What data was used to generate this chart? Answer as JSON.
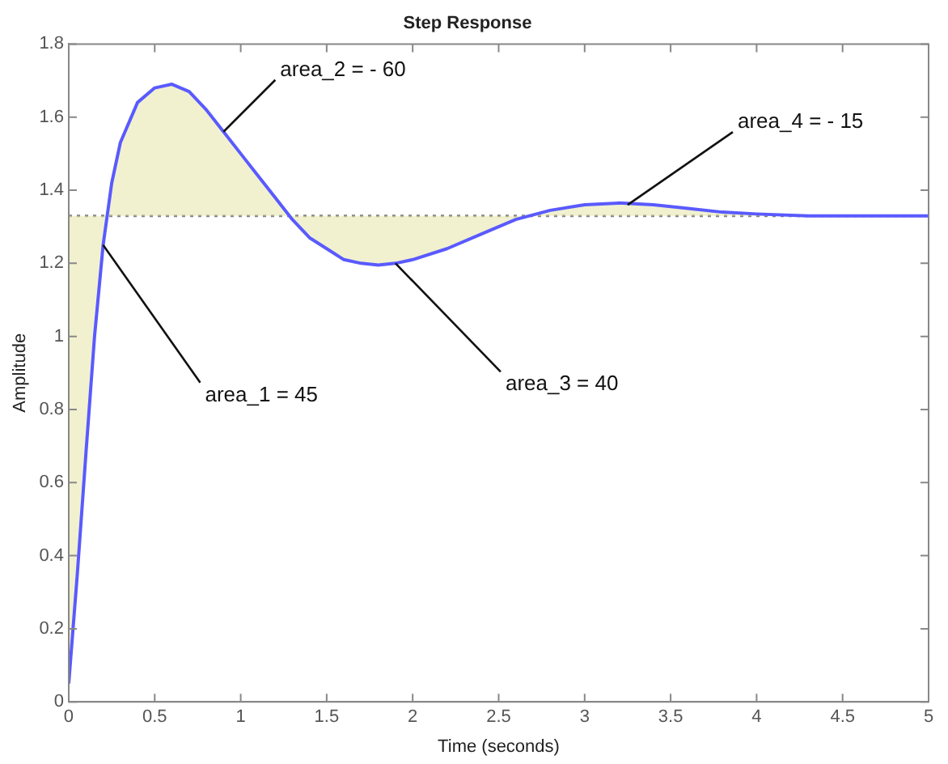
{
  "chart_data": {
    "type": "line",
    "title": "Step Response",
    "xlabel": "Time (seconds)",
    "ylabel": "Amplitude",
    "x": [
      0,
      0.05,
      0.1,
      0.15,
      0.2,
      0.25,
      0.3,
      0.4,
      0.5,
      0.6,
      0.7,
      0.8,
      0.9,
      1.0,
      1.1,
      1.2,
      1.3,
      1.4,
      1.5,
      1.6,
      1.7,
      1.8,
      1.9,
      2.0,
      2.2,
      2.4,
      2.6,
      2.8,
      3.0,
      3.2,
      3.4,
      3.6,
      3.8,
      4.0,
      4.3,
      4.6,
      5.0
    ],
    "series": [
      {
        "color": "#5a5aff",
        "values": [
          0.05,
          0.35,
          0.68,
          1.0,
          1.25,
          1.42,
          1.53,
          1.64,
          1.68,
          1.69,
          1.67,
          1.62,
          1.56,
          1.5,
          1.44,
          1.38,
          1.32,
          1.27,
          1.24,
          1.21,
          1.2,
          1.195,
          1.2,
          1.21,
          1.24,
          1.28,
          1.32,
          1.345,
          1.36,
          1.365,
          1.36,
          1.35,
          1.34,
          1.335,
          1.33,
          1.33,
          1.33
        ]
      }
    ],
    "ref_lines": [
      {
        "axis": "y",
        "value": 1.33,
        "color": "#808080",
        "line_style": "dotted"
      }
    ],
    "annotations": [
      {
        "text": "area_1 = 45",
        "x": 0.2,
        "y": 1.25
      },
      {
        "text": "area_2 = - 60",
        "x": 0.9,
        "y": 1.56
      },
      {
        "text": "area_3 = 40",
        "x": 1.9,
        "y": 1.2
      },
      {
        "text": "area_4 = - 15",
        "x": 3.25,
        "y": 1.36
      }
    ],
    "xlim": [
      0,
      5
    ],
    "xticks": [
      0,
      0.5,
      1,
      1.5,
      2,
      2.5,
      3,
      3.5,
      4,
      4.5,
      5
    ],
    "ylim": [
      0,
      1.8
    ],
    "yticks": [
      0,
      0.2,
      0.4,
      0.6,
      0.8,
      1,
      1.2,
      1.4,
      1.6,
      1.8
    ],
    "grid": false,
    "legend": false,
    "marker": "none",
    "line_style": "solid"
  }
}
